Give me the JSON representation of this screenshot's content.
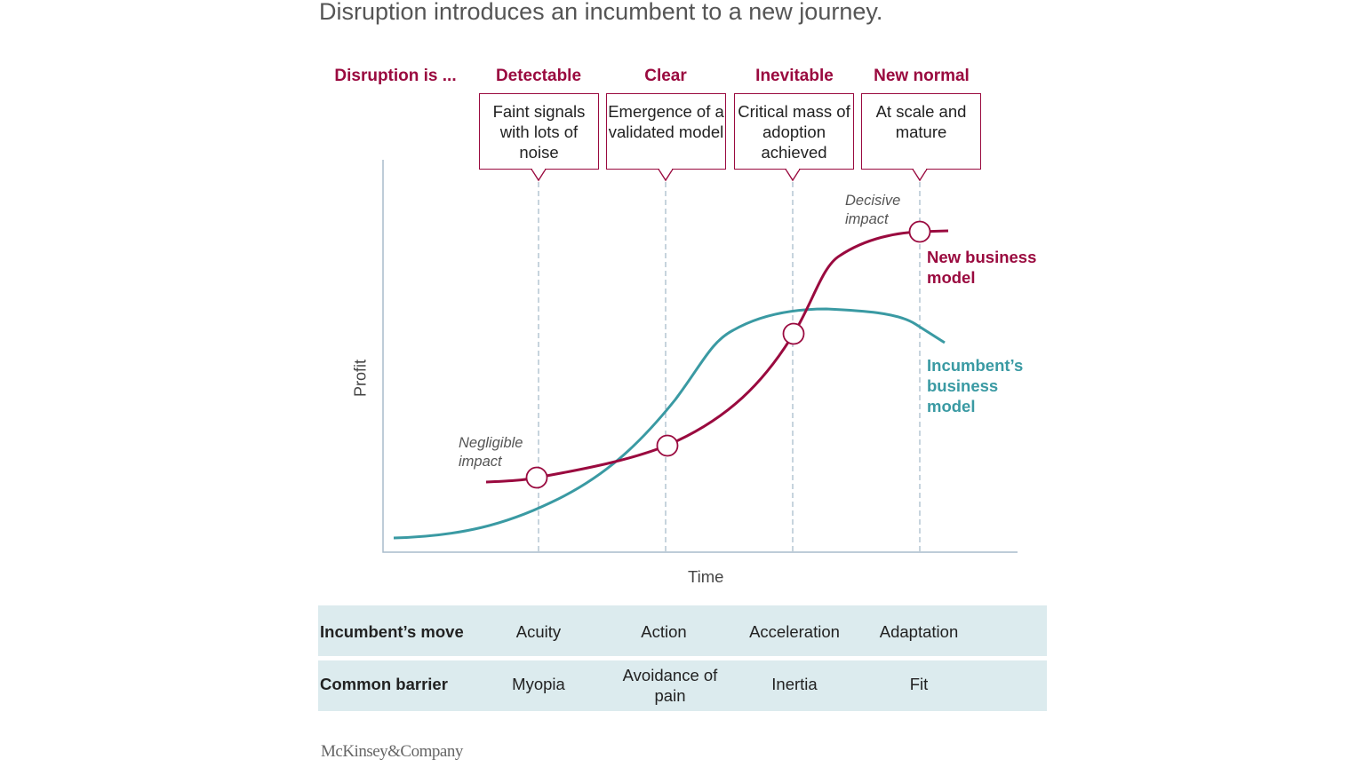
{
  "title": "Disruption introduces an incumbent to a new journey.",
  "stage_header": "Disruption is ...",
  "stages": [
    {
      "label": "Detectable",
      "description": "Faint signals with lots of noise"
    },
    {
      "label": "Clear",
      "description": "Emergence of a validated model"
    },
    {
      "label": "Inevitable",
      "description": "Critical mass of adoption achieved"
    },
    {
      "label": "New normal",
      "description": "At scale and mature"
    }
  ],
  "axes": {
    "y": "Profit",
    "x": "Time"
  },
  "annotations": {
    "negligible": "Negligible impact",
    "decisive": "Decisive impact"
  },
  "series": {
    "new": "New business model",
    "incumbent": "Incumbent’s business model"
  },
  "colors": {
    "crimson": "#9a0a3f",
    "teal": "#3a9aa3",
    "table_bg": "#dcebee"
  },
  "table": {
    "rows": [
      {
        "header": "Incumbent’s move",
        "cells": [
          "Acuity",
          "Action",
          "Acceleration",
          "Adaptation"
        ]
      },
      {
        "header": "Common barrier",
        "cells": [
          "Myopia",
          "Avoidance of pain",
          "Inertia",
          "Fit"
        ]
      }
    ]
  },
  "footer": "McKinsey&Company"
}
